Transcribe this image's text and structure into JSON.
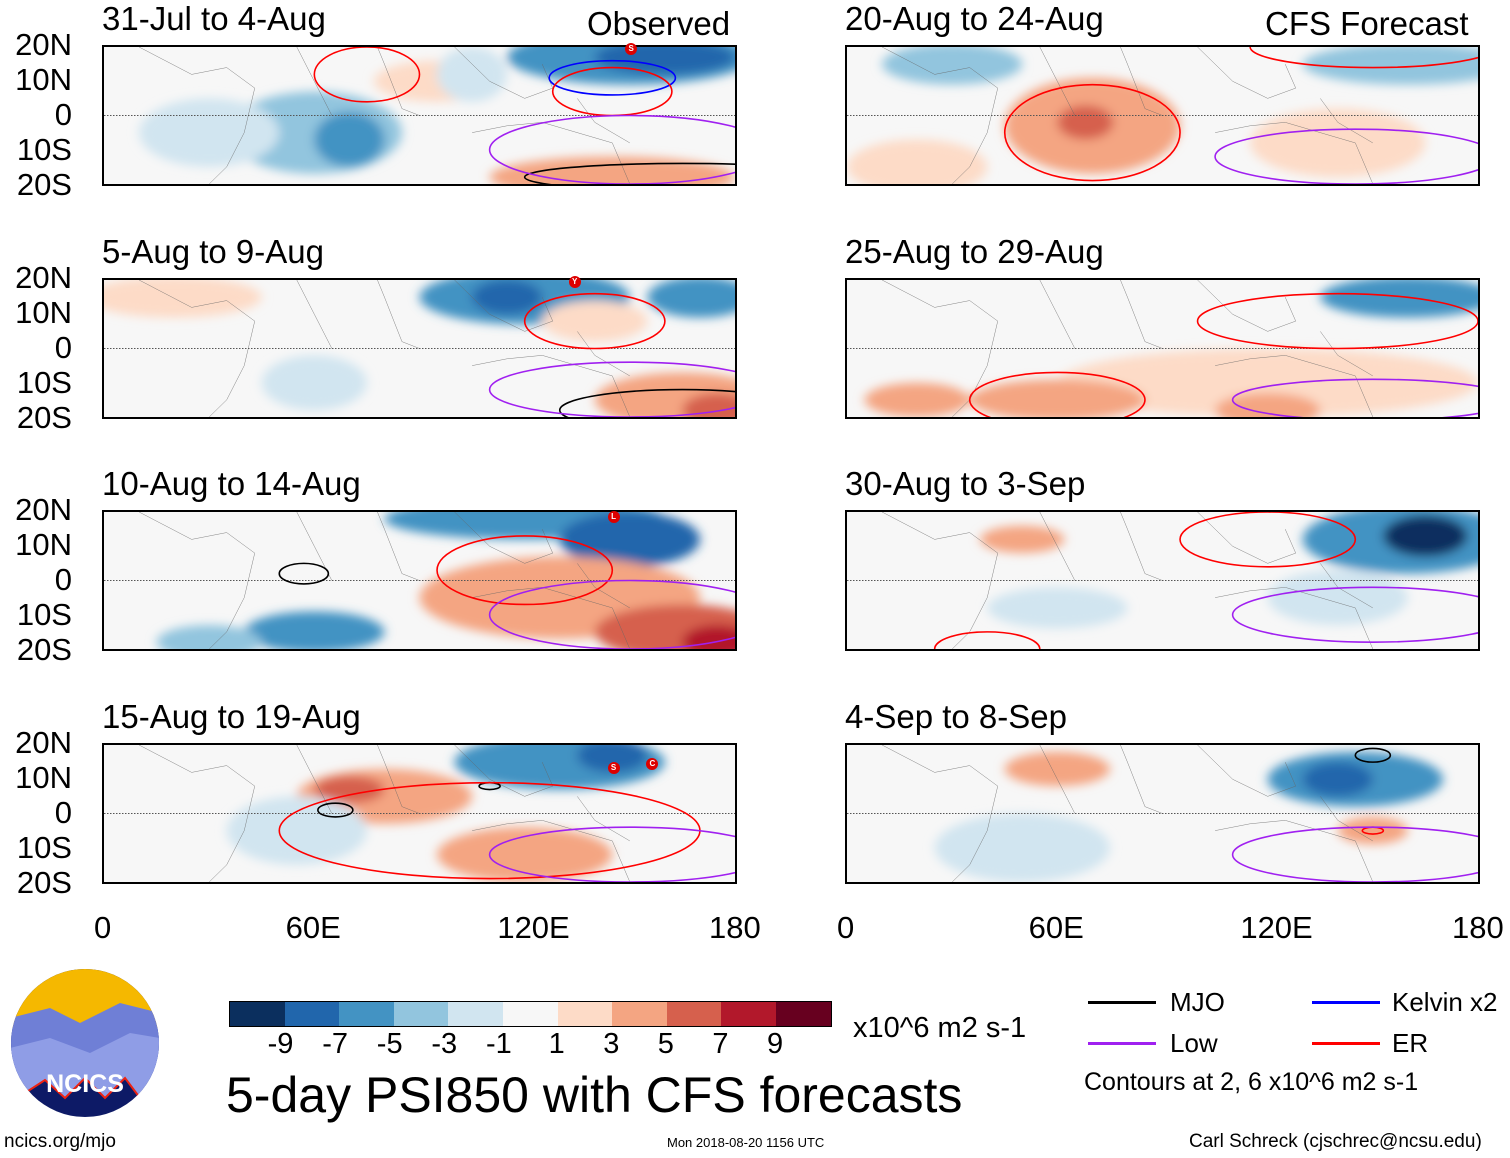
{
  "chart_data": {
    "type": "heatmap",
    "title": "5-day PSI850 with CFS forecasts",
    "variable": "PSI850 anomaly",
    "units": "x10^6 m2 s-1",
    "column_labels": [
      "Observed",
      "CFS Forecast"
    ],
    "panels": [
      {
        "title": "31-Jul to 4-Aug",
        "column": "Observed",
        "storms": [
          "S"
        ]
      },
      {
        "title": "5-Aug to 9-Aug",
        "column": "Observed",
        "storms": [
          "Y"
        ]
      },
      {
        "title": "10-Aug to 14-Aug",
        "column": "Observed",
        "storms": [
          "L"
        ]
      },
      {
        "title": "15-Aug to 19-Aug",
        "column": "Observed",
        "storms": [
          "S",
          "C"
        ]
      },
      {
        "title": "20-Aug to 24-Aug",
        "column": "CFS Forecast",
        "storms": []
      },
      {
        "title": "25-Aug to 29-Aug",
        "column": "CFS Forecast",
        "storms": []
      },
      {
        "title": "30-Aug to 3-Sep",
        "column": "CFS Forecast",
        "storms": []
      },
      {
        "title": "4-Sep to 8-Sep",
        "column": "CFS Forecast",
        "storms": []
      }
    ],
    "yticks": [
      "20N",
      "10N",
      "0",
      "10S",
      "20S"
    ],
    "xticks": [
      "0",
      "60E",
      "120E",
      "180"
    ],
    "xlim": [
      0,
      180
    ],
    "ylim": [
      -20,
      20
    ],
    "colorbar": {
      "ticks": [
        "-9",
        "-7",
        "-5",
        "-3",
        "-1",
        "1",
        "3",
        "5",
        "7",
        "9"
      ],
      "colors": [
        "#0b2f5e",
        "#2166ac",
        "#4393c3",
        "#92c5de",
        "#d1e5f0",
        "#f7f7f7",
        "#fddbc7",
        "#f4a582",
        "#d6604d",
        "#b2182b",
        "#67001f"
      ]
    },
    "legend": [
      {
        "label": "MJO",
        "color": "#000000"
      },
      {
        "label": "Kelvin x2",
        "color": "#0000ff"
      },
      {
        "label": "Low",
        "color": "#a020f0"
      },
      {
        "label": "ER",
        "color": "#ff0000"
      }
    ],
    "contour_note": "Contours at 2, 6 x10^6 m2 s-1"
  },
  "footer": {
    "logo_text": "NCICS",
    "site": "ncics.org/mjo",
    "timestamp": "Mon 2018-08-20 1156 UTC",
    "author": "Carl Schreck (cjschrec@ncsu.edu)"
  }
}
